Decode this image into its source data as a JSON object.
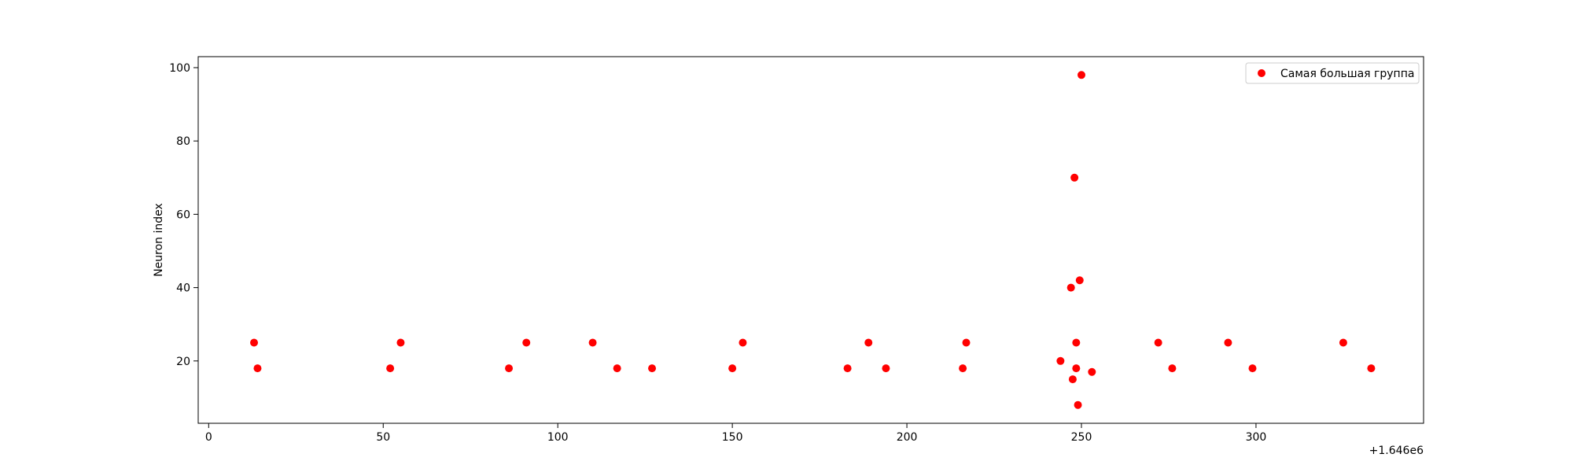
{
  "chart_data": {
    "type": "scatter",
    "title": "",
    "xlabel": "",
    "ylabel": "Neuron index",
    "x_offset_label": "+1.646e6",
    "xlim": [
      -3,
      348
    ],
    "ylim": [
      3,
      103
    ],
    "x_ticks": [
      0,
      50,
      100,
      150,
      200,
      250,
      300
    ],
    "y_ticks": [
      20,
      40,
      60,
      80,
      100
    ],
    "grid": false,
    "legend_position": "top-right",
    "series": [
      {
        "name": "Самая большая группа",
        "color": "#ff0000",
        "marker": "circle",
        "x": [
          13,
          14,
          52,
          55,
          86,
          91,
          110,
          117,
          127,
          150,
          153,
          183,
          189,
          194,
          216,
          217,
          244,
          247,
          247.5,
          248,
          248.5,
          248.5,
          249,
          249.5,
          250,
          253,
          272,
          276,
          292,
          299,
          325,
          333
        ],
        "y": [
          25,
          18,
          18,
          25,
          18,
          25,
          25,
          18,
          18,
          18,
          25,
          18,
          25,
          18,
          18,
          25,
          20,
          40,
          15,
          70,
          25,
          18,
          8,
          42,
          98,
          17,
          25,
          18,
          25,
          18,
          25,
          18
        ]
      }
    ]
  }
}
